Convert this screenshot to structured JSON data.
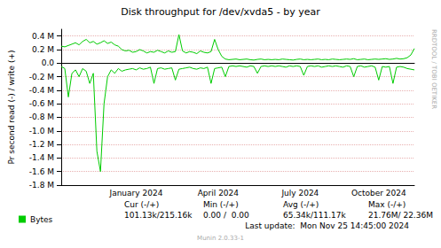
{
  "chart_data": {
    "type": "line",
    "title": "Disk throughput for /dev/xvda5 - by year",
    "y_label": "Pr second read (-) / write (+)",
    "side_text": "RRDTOOL / TOBI OETIKER",
    "stats": {
      "header": [
        "Cur (-/+)",
        "Min (-/+)",
        "Avg (-/+)",
        "Max (-/+)"
      ],
      "row": [
        "101.13k/215.16k",
        "0.00 /  0.00",
        "65.34k/111.17k",
        "21.76M/ 22.36M"
      ]
    },
    "footer": "Last update:  Mon Nov 25 14:45:00 2024",
    "version": "Munin 2.0.33-1",
    "legend": "bottom-left",
    "grid": true,
    "categories": [
      null,
      null,
      null,
      null,
      null,
      null,
      null,
      null,
      null,
      null,
      null,
      null,
      null,
      null,
      null,
      null,
      null,
      null,
      null,
      null,
      null,
      "January 2024",
      null,
      null,
      null,
      null,
      null,
      null,
      null,
      null,
      null,
      null,
      null,
      null,
      null,
      null,
      null,
      null,
      null,
      null,
      null,
      null,
      null,
      null,
      "April 2024",
      null,
      null,
      null,
      null,
      null,
      null,
      null,
      null,
      null,
      null,
      null,
      null,
      null,
      null,
      null,
      null,
      null,
      null,
      null,
      null,
      null,
      null,
      "July 2024",
      null,
      null,
      null,
      null,
      null,
      null,
      null,
      null,
      null,
      null,
      null,
      null,
      null,
      null,
      null,
      null,
      null,
      null,
      null,
      null,
      null,
      "October 2024",
      null,
      null,
      null,
      null,
      null,
      null,
      null,
      null,
      null,
      null
    ],
    "series": [
      {
        "name": "Bytes",
        "color": "#00cc00",
        "values": [
          250000,
          240000,
          260000,
          280000,
          300000,
          270000,
          320000,
          350000,
          300000,
          320000,
          280000,
          300000,
          330000,
          290000,
          310000,
          270000,
          250000,
          200000,
          180000,
          190000,
          160000,
          170000,
          200000,
          180000,
          150000,
          170000,
          160000,
          190000,
          170000,
          150000,
          180000,
          160000,
          170000,
          420000,
          180000,
          150000,
          170000,
          160000,
          140000,
          180000,
          160000,
          150000,
          170000,
          350000,
          200000,
          100000,
          60000,
          50000,
          55000,
          60000,
          50000,
          55000,
          60000,
          50000,
          45000,
          55000,
          60000,
          50000,
          55000,
          50000,
          55000,
          50000,
          60000,
          55000,
          50000,
          45000,
          55000,
          60000,
          50000,
          55000,
          50000,
          55000,
          60000,
          50000,
          55000,
          50000,
          60000,
          55000,
          50000,
          55000,
          60000,
          55000,
          65000,
          50000,
          55000,
          60000,
          50000,
          55000,
          60000,
          55000,
          60000,
          65000,
          55000,
          60000,
          70000,
          60000,
          65000,
          80000,
          120000,
          215000
        ]
      },
      {
        "name": "Bytes",
        "color": "#00cc00",
        "values": [
          -50000,
          -80000,
          -500000,
          -150000,
          -100000,
          -200000,
          -80000,
          -120000,
          -300000,
          -150000,
          -1300000,
          -1600000,
          -600000,
          -200000,
          -100000,
          -150000,
          -80000,
          -120000,
          -100000,
          -90000,
          -80000,
          -100000,
          -70000,
          -90000,
          -80000,
          -60000,
          -300000,
          -80000,
          -70000,
          -90000,
          -80000,
          -70000,
          -250000,
          -90000,
          -80000,
          -70000,
          -60000,
          -80000,
          -90000,
          -70000,
          -80000,
          -60000,
          -300000,
          -80000,
          -70000,
          -60000,
          -200000,
          -50000,
          -40000,
          -50000,
          -40000,
          -50000,
          -60000,
          -40000,
          -50000,
          -150000,
          -50000,
          -40000,
          -50000,
          -40000,
          -50000,
          -40000,
          -50000,
          -60000,
          -40000,
          -50000,
          -40000,
          -50000,
          -180000,
          -50000,
          -40000,
          -50000,
          -40000,
          -60000,
          -50000,
          -40000,
          -50000,
          -40000,
          -50000,
          -60000,
          -40000,
          -50000,
          -200000,
          -50000,
          -40000,
          -60000,
          -50000,
          -40000,
          -60000,
          -250000,
          -50000,
          -60000,
          -50000,
          -300000,
          -60000,
          -50000,
          -60000,
          -80000,
          -90000,
          -100000
        ]
      }
    ],
    "ylim": [
      -1800000,
      500000
    ],
    "yticks": [
      {
        "value": 400000,
        "label": "0.4 M"
      },
      {
        "value": 200000,
        "label": "0.2 M"
      },
      {
        "value": 0,
        "label": "0.0"
      },
      {
        "value": -200000,
        "label": "-0.2 M"
      },
      {
        "value": -400000,
        "label": "-0.4 M"
      },
      {
        "value": -600000,
        "label": "-0.6 M"
      },
      {
        "value": -800000,
        "label": "-0.8 M"
      },
      {
        "value": -1000000,
        "label": "-1.0 M"
      },
      {
        "value": -1200000,
        "label": "-1.2 M"
      },
      {
        "value": -1400000,
        "label": "-1.4 M"
      },
      {
        "value": -1600000,
        "label": "-1.6 M"
      },
      {
        "value": -1800000,
        "label": "-1.8 M"
      }
    ]
  }
}
